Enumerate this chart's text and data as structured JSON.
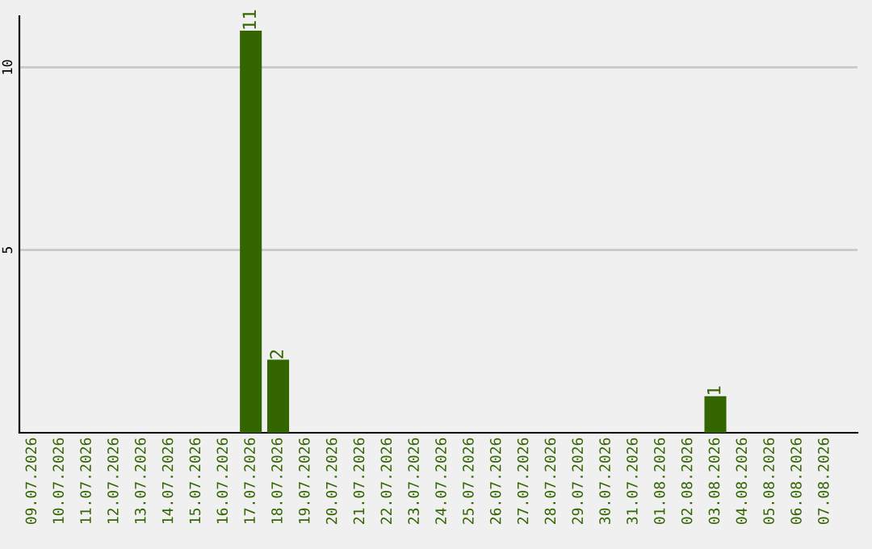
{
  "chart_data": {
    "type": "bar",
    "categories": [
      "09.07.2026",
      "10.07.2026",
      "11.07.2026",
      "12.07.2026",
      "13.07.2026",
      "14.07.2026",
      "15.07.2026",
      "16.07.2026",
      "17.07.2026",
      "18.07.2026",
      "19.07.2026",
      "20.07.2026",
      "21.07.2026",
      "22.07.2026",
      "23.07.2026",
      "24.07.2026",
      "25.07.2026",
      "26.07.2026",
      "27.07.2026",
      "28.07.2026",
      "29.07.2026",
      "30.07.2026",
      "31.07.2026",
      "01.08.2026",
      "02.08.2026",
      "03.08.2026",
      "04.08.2026",
      "05.08.2026",
      "06.08.2026",
      "07.08.2026"
    ],
    "values": [
      0,
      0,
      0,
      0,
      0,
      0,
      0,
      0,
      11,
      2,
      0,
      0,
      0,
      0,
      0,
      0,
      0,
      0,
      0,
      0,
      0,
      0,
      0,
      0,
      0,
      1,
      0,
      0,
      0,
      0
    ],
    "value_labels": [
      null,
      null,
      null,
      null,
      null,
      null,
      null,
      null,
      "11",
      "2",
      null,
      null,
      null,
      null,
      null,
      null,
      null,
      null,
      null,
      null,
      null,
      null,
      null,
      null,
      null,
      "1",
      null,
      null,
      null,
      null
    ],
    "color": "#336600",
    "ylim": [
      0,
      11.4
    ],
    "yticks": [
      5,
      10
    ],
    "grid": "y"
  }
}
